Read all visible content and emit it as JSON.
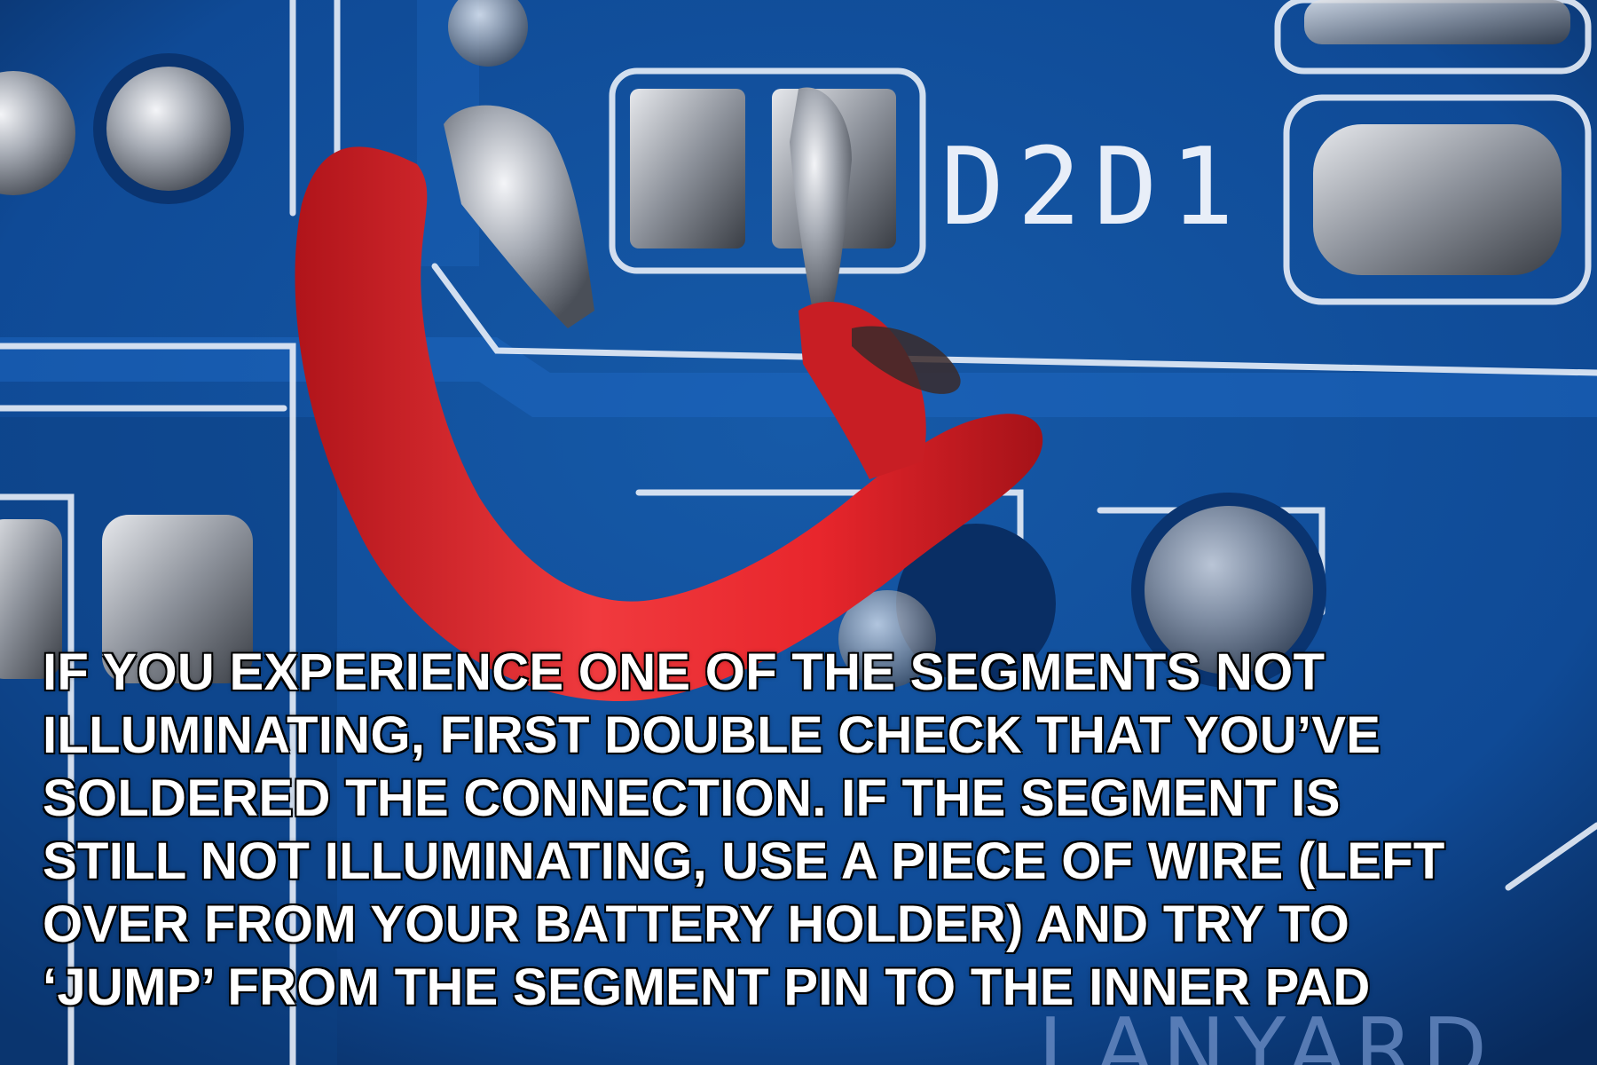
{
  "photo": {
    "board_label": "D2D1",
    "bottom_label": "LANYARD",
    "colors": {
      "board": "#0f4a96",
      "board_dark": "#0a3470",
      "trace": "#1e66c0",
      "silkscreen": "#e8eef8",
      "solder": "#c9ccd2",
      "wire": "#e8262c"
    }
  },
  "caption": {
    "lines": [
      "IF YOU EXPERIENCE ONE OF THE SEGMENTS NOT",
      "ILLUMINATING, FIRST DOUBLE CHECK THAT YOU’VE",
      "SOLDERED THE CONNECTION.  IF THE SEGMENT IS",
      "STILL NOT ILLUMINATING, USE A PIECE OF WIRE (LEFT",
      "OVER FROM YOUR BATTERY HOLDER) AND TRY TO",
      "‘JUMP’ FROM THE SEGMENT PIN TO THE INNER PAD"
    ]
  }
}
